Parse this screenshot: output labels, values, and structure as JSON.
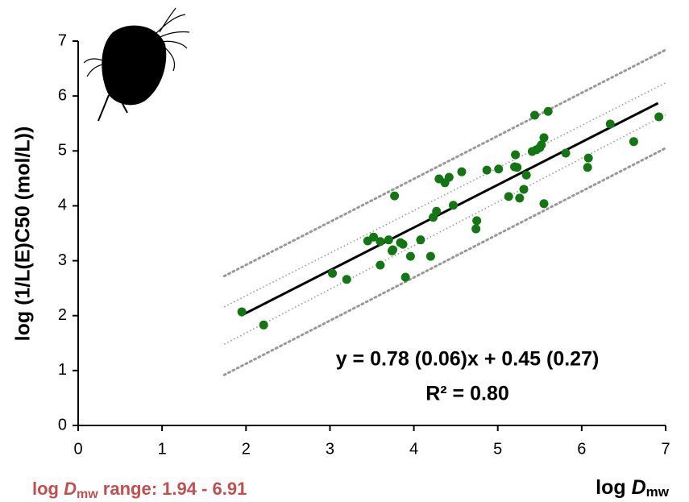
{
  "chart_data": {
    "type": "scatter",
    "y_label": "log (1/L(E)C50 (mol/L))",
    "x_label": [
      "log ",
      "D",
      "mw"
    ],
    "range_note": [
      "log ",
      "D",
      "mw",
      " range: 1.94 - 6.91"
    ],
    "equation": "y = 0.78 (0.06)x + 0.45 (0.27)",
    "r_squared": "R² = 0.80",
    "xlim": [
      0,
      7
    ],
    "ylim": [
      0,
      7
    ],
    "xticks": [
      0,
      1,
      2,
      3,
      4,
      5,
      6,
      7
    ],
    "yticks": [
      0,
      1,
      2,
      3,
      4,
      5,
      6,
      7
    ],
    "series": [
      {
        "color": "#147514",
        "x": [
          1.95,
          2.21,
          3.03,
          3.2,
          3.45,
          3.52,
          3.6,
          3.6,
          3.7,
          3.74,
          3.75,
          3.77,
          3.84,
          3.87,
          3.9,
          3.96,
          4.08,
          4.2,
          4.23,
          4.27,
          4.3,
          4.37,
          4.42,
          4.47,
          4.75,
          4.74,
          4.57,
          4.87,
          5.01,
          5.13,
          5.2,
          5.21,
          5.23,
          5.26,
          5.31,
          5.34,
          5.41,
          5.44,
          5.55,
          5.46,
          5.5,
          5.52,
          5.55,
          5.6,
          5.81,
          6.08,
          6.07,
          6.34,
          6.62,
          6.92
        ],
        "values": [
          2.07,
          1.83,
          2.77,
          2.66,
          3.36,
          3.43,
          3.35,
          2.92,
          3.38,
          3.18,
          3.2,
          4.18,
          3.33,
          3.3,
          2.7,
          3.08,
          3.38,
          3.08,
          3.79,
          3.9,
          4.49,
          4.42,
          4.52,
          4.01,
          3.73,
          3.58,
          4.62,
          4.65,
          4.67,
          4.17,
          4.71,
          4.93,
          4.7,
          4.14,
          4.3,
          4.56,
          4.99,
          5.65,
          4.04,
          5.02,
          5.06,
          5.11,
          5.24,
          5.72,
          4.96,
          4.87,
          4.7,
          5.49,
          5.17,
          5.62
        ]
      }
    ],
    "lines": [
      {
        "style": "solid",
        "x": [
          1.94,
          6.91
        ],
        "y": [
          2.0,
          5.87
        ]
      },
      {
        "style": "dotted-wide",
        "x": [
          1.74,
          7
        ],
        "y": [
          2.72,
          6.84
        ]
      },
      {
        "style": "dotted-wide",
        "x": [
          1.74,
          7
        ],
        "y": [
          0.92,
          5.05
        ]
      },
      {
        "style": "dotted-thin",
        "x": [
          1.74,
          7
        ],
        "y": [
          2.16,
          6.24
        ]
      },
      {
        "style": "dotted-thin",
        "x": [
          1.74,
          7
        ],
        "y": [
          1.48,
          5.66
        ]
      }
    ]
  }
}
